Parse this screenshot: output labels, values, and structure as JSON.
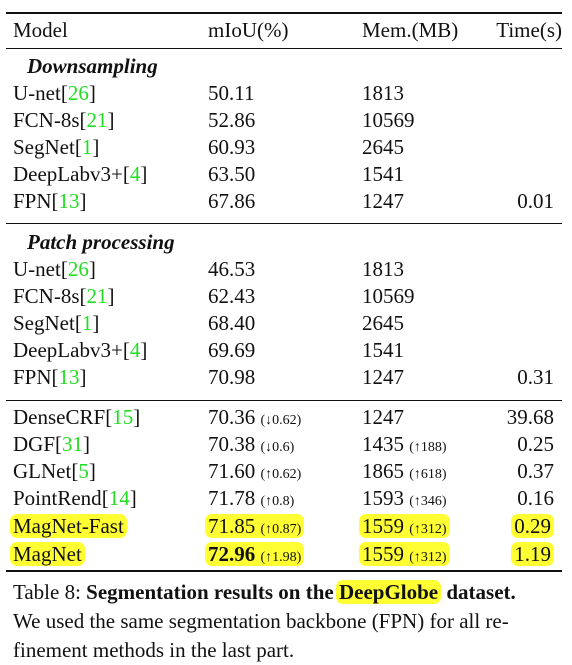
{
  "headers": [
    "Model",
    "mIoU(%)",
    "Mem.(MB)",
    "Time(s)"
  ],
  "sections": [
    {
      "title": "Downsampling",
      "rows": [
        {
          "model": "U-net",
          "cite": "26",
          "miou": "50.11",
          "mem": "1813",
          "time": ""
        },
        {
          "model": "FCN-8s",
          "cite": "21",
          "miou": "52.86",
          "mem": "10569",
          "time": ""
        },
        {
          "model": "SegNet",
          "cite": "1",
          "miou": "60.93",
          "mem": "2645",
          "time": ""
        },
        {
          "model": "DeepLabv3+",
          "cite": "4",
          "miou": "63.50",
          "mem": "1541",
          "time": ""
        },
        {
          "model": "FPN",
          "cite": "13",
          "miou": "67.86",
          "mem": "1247",
          "time": "0.01"
        }
      ]
    },
    {
      "title": "Patch processing",
      "rows": [
        {
          "model": "U-net",
          "cite": "26",
          "miou": "46.53",
          "mem": "1813",
          "time": ""
        },
        {
          "model": "FCN-8s",
          "cite": "21",
          "miou": "62.43",
          "mem": "10569",
          "time": ""
        },
        {
          "model": "SegNet",
          "cite": "1",
          "miou": "68.40",
          "mem": "2645",
          "time": ""
        },
        {
          "model": "DeepLabv3+",
          "cite": "4",
          "miou": "69.69",
          "mem": "1541",
          "time": ""
        },
        {
          "model": "FPN",
          "cite": "13",
          "miou": "70.98",
          "mem": "1247",
          "time": "0.31"
        }
      ]
    },
    {
      "title": "",
      "rows": [
        {
          "model": "DenseCRF",
          "cite": "15",
          "miou": "70.36",
          "miou_delta": "(↓0.62)",
          "mem": "1247",
          "time": "39.68"
        },
        {
          "model": "DGF",
          "cite": "31",
          "miou": "70.38",
          "miou_delta": "(↓0.6)",
          "mem": "1435",
          "mem_delta": "(↑188)",
          "time": "0.25"
        },
        {
          "model": "GLNet",
          "cite": "5",
          "miou": "71.60",
          "miou_delta": "(↑0.62)",
          "mem": "1865",
          "mem_delta": "(↑618)",
          "time": "0.37"
        },
        {
          "model": "PointRend",
          "cite": "14",
          "miou": "71.78",
          "miou_delta": "(↑0.8)",
          "mem": "1593",
          "mem_delta": "(↑346)",
          "time": "0.16"
        },
        {
          "model": "MagNet-Fast",
          "cite": "",
          "miou": "71.85",
          "miou_delta": "(↑0.87)",
          "mem": "1559",
          "mem_delta": "(↑312)",
          "time": "0.29"
        },
        {
          "model": "MagNet",
          "cite": "",
          "miou": "72.96",
          "miou_delta": "(↑1.98)",
          "mem": "1559",
          "mem_delta": "(↑312)",
          "time": "1.19"
        }
      ]
    }
  ],
  "caption": {
    "label": "Table 8:",
    "bold_pre": "Segmentation results on the",
    "bold_highlight": "DeepGlobe",
    "bold_post": "dataset.",
    "line2": "We used the same segmentation backbone (FPN) for all re-",
    "line3": "finement methods in the last part."
  },
  "highlight_color": "#ffff33",
  "citation_color": "#22dd22"
}
